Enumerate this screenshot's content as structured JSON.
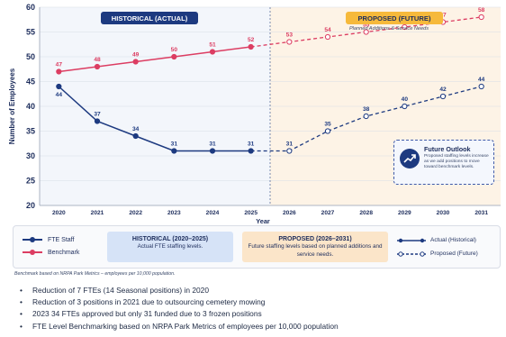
{
  "chart_data": {
    "type": "line",
    "x": [
      "2020",
      "2021",
      "2022",
      "2023",
      "2024",
      "2025",
      "2026",
      "2027",
      "2028",
      "2029",
      "2030",
      "2031"
    ],
    "xlabel": "Year",
    "ylabel": "Number of Employees",
    "ylim": [
      20,
      60
    ],
    "yticks": [
      20,
      25,
      30,
      35,
      40,
      45,
      50,
      55,
      60
    ],
    "grid": true,
    "series": [
      {
        "name": "FTE Staff",
        "color": "#1d3a80",
        "values": [
          44,
          37,
          34,
          31,
          31,
          31,
          31,
          35,
          38,
          40,
          42,
          44
        ],
        "historical_range": [
          0,
          6
        ]
      },
      {
        "name": "Benchmark",
        "color": "#dc3d62",
        "values": [
          47,
          48,
          49,
          50,
          51,
          52,
          53,
          54,
          55,
          56,
          57,
          58
        ],
        "historical_range": [
          0,
          6
        ]
      }
    ],
    "regions": {
      "historical": {
        "label": "HISTORICAL (ACTUAL)",
        "from": "2020",
        "to": "2025"
      },
      "proposed": {
        "label": "PROPOSED (FUTURE)",
        "subtitle": "Planned Additions & Service Needs",
        "from": "2026",
        "to": "2031"
      }
    }
  },
  "callout": {
    "title": "Future Outlook",
    "text": "Proposed staffing levels increase as we add positions to move toward benchmark levels.",
    "icon": "trend-up-icon"
  },
  "legend": {
    "series": [
      {
        "label": "FTE Staff",
        "color": "#1d3a80"
      },
      {
        "label": "Benchmark",
        "color": "#dc3d62"
      }
    ],
    "historical_box": {
      "title": "HISTORICAL (2020–2025)",
      "text": "Actual FTE staffing levels."
    },
    "proposed_box": {
      "title": "PROPOSED (2026–2031)",
      "text": "Future staffing levels based on planned additions and service needs."
    },
    "actual_label": "Actual (Historical)",
    "proposed_label": "Proposed (Future)"
  },
  "note": "Benchmark based on NRPA Park Metrics – employees per 10,000 population.",
  "bullets": [
    "Reduction of 7 FTEs (14 Seasonal positions) in 2020",
    "Reduction of 3 positions in 2021 due to outsourcing cemetery mowing",
    "2023 34 FTEs approved but only 31 funded due to 3 frozen positions",
    "FTE Level Benchmarking based on NRPA Park Metrics of employees per 10,000 population"
  ]
}
